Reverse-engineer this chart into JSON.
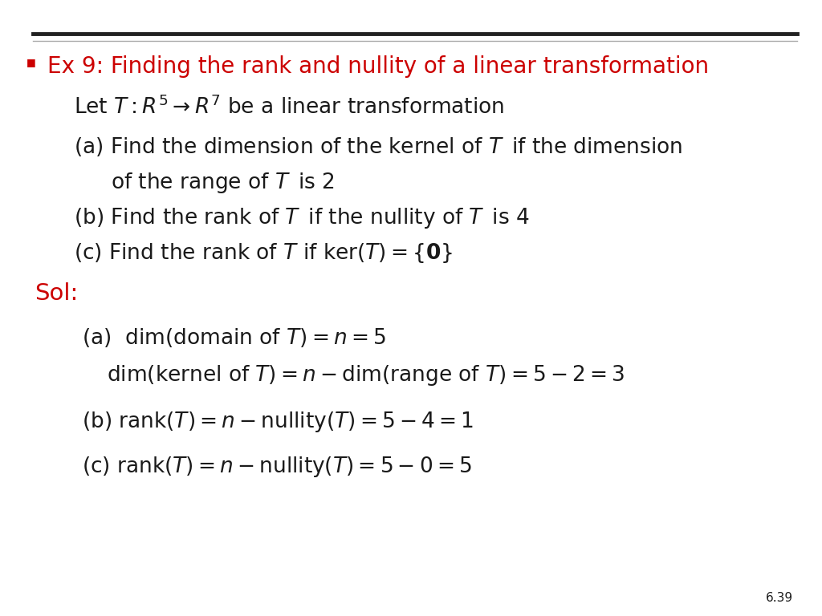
{
  "background_color": "#ffffff",
  "title_color": "#cc0000",
  "body_color": "#1a1a1a",
  "sol_color": "#cc0000",
  "bullet_color": "#cc0000",
  "page_number": "6.39",
  "title_text": "Ex 9: Finding the rank and nullity of a linear transformation"
}
